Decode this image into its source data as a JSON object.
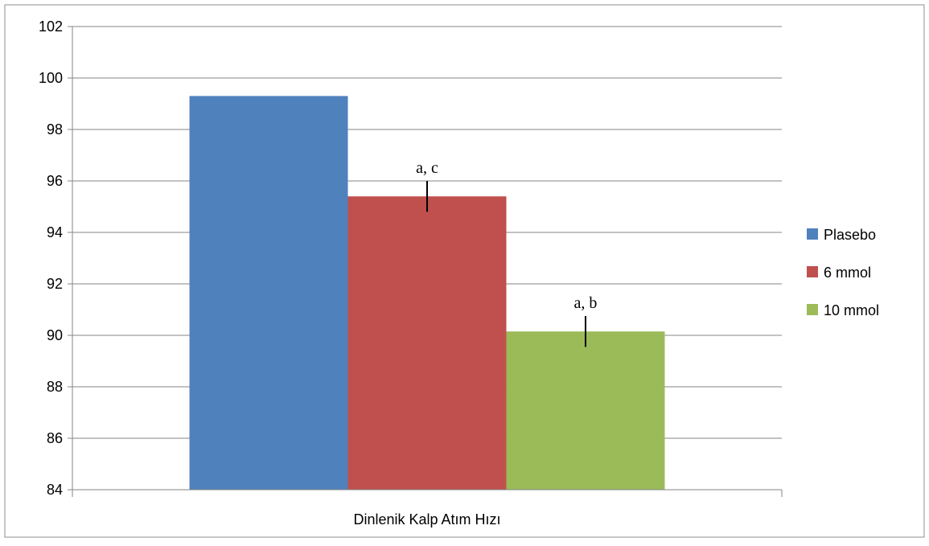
{
  "chart_data": {
    "type": "bar",
    "title": "",
    "xlabel": "",
    "ylabel": "",
    "categories": [
      "Dinlenik Kalp Atım Hızı"
    ],
    "series": [
      {
        "name": "Plasebo",
        "values": [
          99.3
        ],
        "color": "#4F81BD",
        "annotation": "",
        "error": 0
      },
      {
        "name": "6 mmol",
        "values": [
          95.4
        ],
        "color": "#C0504D",
        "annotation": "a, c",
        "error": 0.6
      },
      {
        "name": "10 mmol",
        "values": [
          90.15
        ],
        "color": "#9BBB59",
        "annotation": "a, b",
        "error": 0.6
      }
    ],
    "ylim": [
      84,
      102
    ],
    "yticks": [
      84,
      86,
      88,
      90,
      92,
      94,
      96,
      98,
      100,
      102
    ],
    "grid": true,
    "legend_position": "right"
  }
}
